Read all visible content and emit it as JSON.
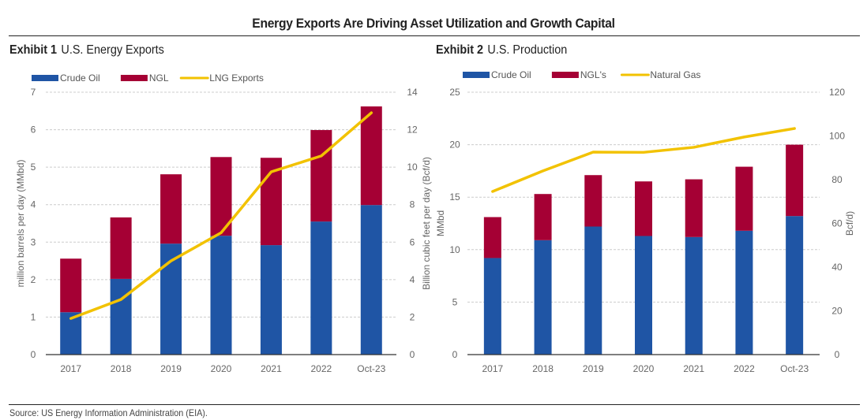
{
  "page": {
    "title": "Energy Exports Are Driving Asset Utilization and Growth Capital",
    "source": "Source: US Energy Information Administration (EIA)."
  },
  "colors": {
    "crude": "#1f55a5",
    "ngl": "#a50034",
    "line": "#f2c200",
    "grid": "#cccccc",
    "axis": "#333333"
  },
  "chart_data": [
    {
      "type": "bar",
      "exhibit_label": "Exhibit 1",
      "title": "U.S. Energy Exports",
      "categories": [
        "2017",
        "2018",
        "2019",
        "2020",
        "2021",
        "2022",
        "Oct-23"
      ],
      "series": [
        {
          "name": "Crude Oil",
          "kind": "stacked-bar",
          "axis": "left",
          "values": [
            1.13,
            2.02,
            2.96,
            3.17,
            2.92,
            3.55,
            3.99
          ]
        },
        {
          "name": "NGL",
          "kind": "stacked-bar",
          "axis": "left",
          "values": [
            1.43,
            1.64,
            1.85,
            2.1,
            2.33,
            2.44,
            2.63
          ]
        },
        {
          "name": "LNG Exports",
          "kind": "line",
          "axis": "right",
          "values": [
            1.93,
            2.94,
            5.0,
            6.5,
            9.75,
            10.6,
            12.9
          ]
        }
      ],
      "ylabel": "million barrels per day (MMbd)",
      "ylabel_right": "Billion cubic feet per day (Bcf/d)",
      "ylim": [
        0,
        7
      ],
      "ylim_right": [
        0,
        14
      ],
      "yticks": [
        "0",
        "1",
        "2",
        "3",
        "4",
        "5",
        "6",
        "7"
      ],
      "yticks_right": [
        "0",
        "2",
        "4",
        "6",
        "8",
        "10",
        "12",
        "14"
      ],
      "grid": true,
      "legend": "top-left"
    },
    {
      "type": "bar",
      "exhibit_label": "Exhibit 2",
      "title": "U.S. Production",
      "categories": [
        "2017",
        "2018",
        "2019",
        "2020",
        "2021",
        "2022",
        "Oct-23"
      ],
      "series": [
        {
          "name": "Crude Oil",
          "kind": "stacked-bar",
          "axis": "left",
          "values": [
            9.2,
            10.9,
            12.2,
            11.3,
            11.2,
            11.8,
            13.2
          ]
        },
        {
          "name": "NGL's",
          "kind": "stacked-bar",
          "axis": "left",
          "values": [
            3.9,
            4.4,
            4.9,
            5.2,
            5.5,
            6.1,
            6.8
          ]
        },
        {
          "name": "Natural Gas",
          "kind": "line",
          "axis": "right",
          "values": [
            74.6,
            84.0,
            92.6,
            92.5,
            94.8,
            99.5,
            103.4
          ]
        }
      ],
      "ylabel": "MMbd",
      "ylabel_right": "Bcf/d)",
      "ylim": [
        0,
        25
      ],
      "ylim_right": [
        0,
        120
      ],
      "yticks": [
        "0",
        "5",
        "10",
        "15",
        "20",
        "25"
      ],
      "yticks_right": [
        "0",
        "20",
        "40",
        "60",
        "80",
        "100",
        "120"
      ],
      "grid": true,
      "legend": "top-left"
    }
  ]
}
